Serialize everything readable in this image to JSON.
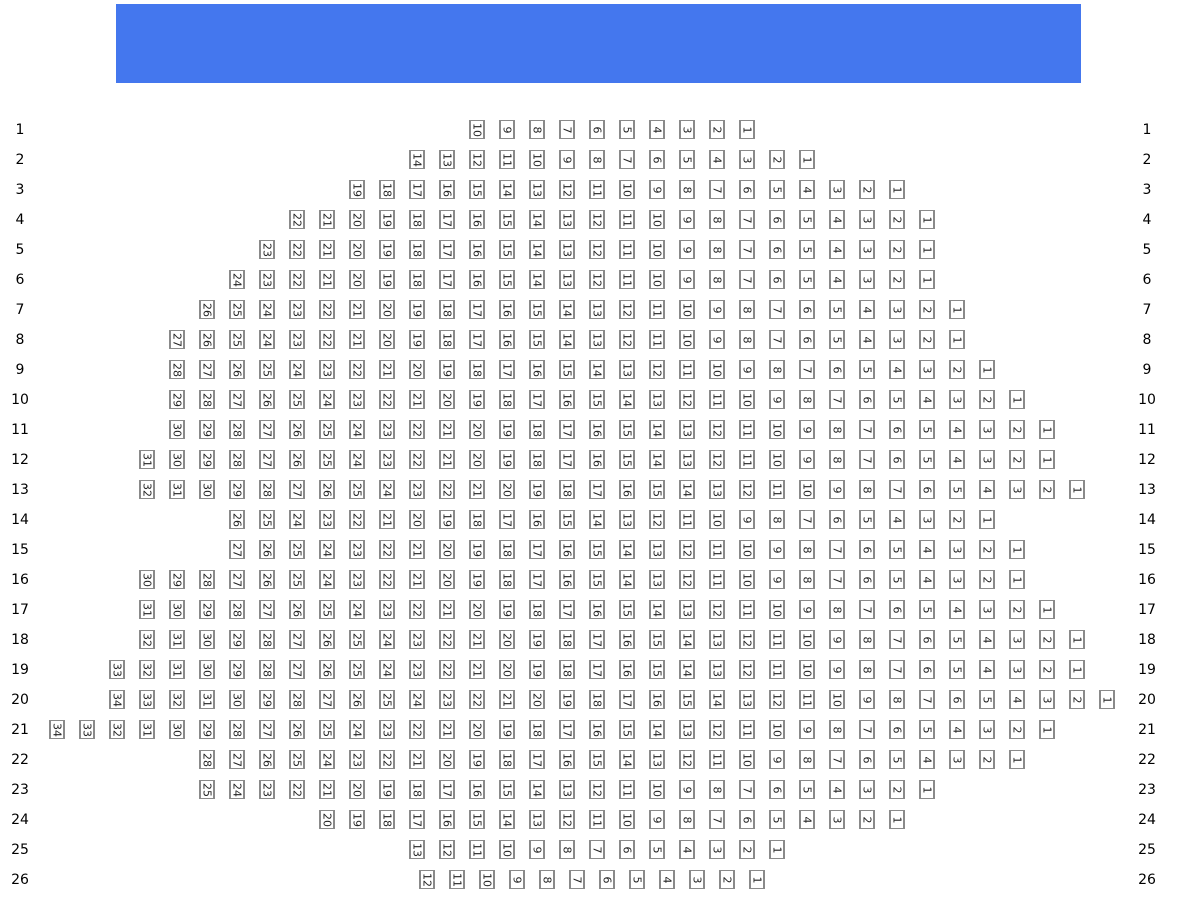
{
  "screen": {
    "color": "#4477ee"
  },
  "seat_numbering": "descending, rightmost seat is 1",
  "rows": [
    {
      "label": "1",
      "seat_count": 10
    },
    {
      "label": "2",
      "seat_count": 14
    },
    {
      "label": "3",
      "seat_count": 19
    },
    {
      "label": "4",
      "seat_count": 22
    },
    {
      "label": "5",
      "seat_count": 23
    },
    {
      "label": "6",
      "seat_count": 24
    },
    {
      "label": "7",
      "seat_count": 26
    },
    {
      "label": "8",
      "seat_count": 27
    },
    {
      "label": "9",
      "seat_count": 28
    },
    {
      "label": "10",
      "seat_count": 29
    },
    {
      "label": "11",
      "seat_count": 30
    },
    {
      "label": "12",
      "seat_count": 31
    },
    {
      "label": "13",
      "seat_count": 32
    },
    {
      "label": "14",
      "seat_count": 26
    },
    {
      "label": "15",
      "seat_count": 27
    },
    {
      "label": "16",
      "seat_count": 30
    },
    {
      "label": "17",
      "seat_count": 31
    },
    {
      "label": "18",
      "seat_count": 32
    },
    {
      "label": "19",
      "seat_count": 33
    },
    {
      "label": "20",
      "seat_count": 34
    },
    {
      "label": "21",
      "seat_count": 34
    },
    {
      "label": "22",
      "seat_count": 28
    },
    {
      "label": "23",
      "seat_count": 25
    },
    {
      "label": "24",
      "seat_count": 20
    },
    {
      "label": "25",
      "seat_count": 13
    },
    {
      "label": "26",
      "seat_count": 12
    }
  ]
}
